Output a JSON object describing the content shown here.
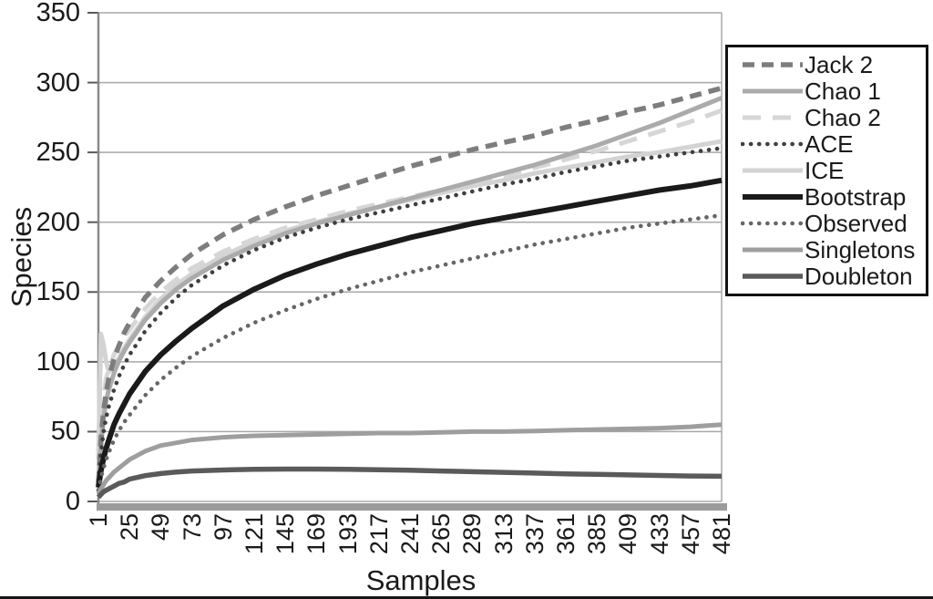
{
  "figure": {
    "background": "#ffffff",
    "text_color": "#1a1a1a"
  },
  "axes": {
    "x_title": "Samples",
    "y_title": "Species",
    "x_tick_labels": [
      "1",
      "25",
      "49",
      "73",
      "97",
      "121",
      "145",
      "169",
      "193",
      "217",
      "241",
      "265",
      "289",
      "313",
      "337",
      "361",
      "385",
      "409",
      "433",
      "457",
      "481"
    ],
    "y_tick_labels": [
      "0",
      "50",
      "100",
      "150",
      "200",
      "250",
      "300",
      "350"
    ],
    "grid_color": "#a8a8a8",
    "axis_color": "#8a8a8a",
    "tick_color": "#5a5a5a",
    "baseline_color": "#9b9b9b"
  },
  "chart_data": {
    "type": "line",
    "title": "",
    "xlabel": "Samples",
    "ylabel": "Species",
    "xlim": [
      1,
      481
    ],
    "ylim": [
      0,
      350
    ],
    "x_ticks": [
      1,
      25,
      49,
      73,
      97,
      121,
      145,
      169,
      193,
      217,
      241,
      265,
      289,
      313,
      337,
      361,
      385,
      409,
      433,
      457,
      481
    ],
    "y_ticks": [
      0,
      50,
      100,
      150,
      200,
      250,
      300,
      350
    ],
    "grid": "horizontal",
    "legend_position": "right-outside",
    "x": [
      1,
      3,
      5,
      7,
      9,
      13,
      17,
      21,
      25,
      37,
      49,
      61,
      73,
      97,
      121,
      145,
      169,
      193,
      217,
      241,
      265,
      289,
      313,
      337,
      361,
      385,
      409,
      433,
      457,
      481
    ],
    "series": [
      {
        "name": "Jack 2",
        "color": "#7d7d7d",
        "dash_style": "dash",
        "width": 5.5,
        "values": [
          12,
          45,
          65,
          78,
          88,
          102,
          112,
          121,
          128,
          146,
          158,
          168,
          177,
          191,
          202,
          211,
          219,
          226,
          233,
          240,
          246,
          252,
          257,
          262,
          268,
          273,
          279,
          284,
          290,
          296
        ]
      },
      {
        "name": "Chao 1",
        "color": "#ababab",
        "dash_style": "solid",
        "width": 5,
        "values": [
          12,
          40,
          60,
          72,
          80,
          92,
          101,
          108,
          114,
          130,
          142,
          152,
          160,
          173,
          183,
          192,
          199,
          205,
          211,
          217,
          223,
          229,
          235,
          241,
          248,
          255,
          263,
          271,
          280,
          289
        ]
      },
      {
        "name": "Chao 2",
        "color": "#d6d6d6",
        "dash_style": "long-dash",
        "width": 5,
        "values": [
          15,
          55,
          75,
          88,
          95,
          105,
          112,
          118,
          123,
          138,
          150,
          159,
          167,
          179,
          188,
          196,
          202,
          208,
          213,
          218,
          223,
          228,
          233,
          239,
          245,
          251,
          258,
          265,
          272,
          280
        ]
      },
      {
        "name": "ACE",
        "color": "#3f3f3f",
        "dash_style": "dot",
        "width": 4.6,
        "values": [
          15,
          35,
          50,
          60,
          68,
          80,
          90,
          98,
          105,
          122,
          135,
          146,
          155,
          169,
          180,
          189,
          196,
          202,
          207,
          212,
          217,
          222,
          227,
          231,
          236,
          240,
          244,
          247,
          250,
          253
        ]
      },
      {
        "name": "ICE",
        "color": "#d3d3d3",
        "dash_style": "solid",
        "width": 5,
        "values": [
          30,
          120,
          112,
          100,
          93,
          96,
          103,
          110,
          116,
          132,
          145,
          155,
          163,
          176,
          186,
          194,
          200,
          206,
          211,
          216,
          221,
          226,
          230,
          235,
          239,
          243,
          247,
          250,
          254,
          258
        ]
      },
      {
        "name": "Bootstrap",
        "color": "#1a1a1a",
        "dash_style": "solid",
        "width": 6,
        "values": [
          10,
          22,
          31,
          38,
          44,
          55,
          63,
          70,
          77,
          93,
          105,
          115,
          124,
          140,
          152,
          162,
          170,
          177,
          183,
          189,
          194,
          199,
          203,
          207,
          211,
          215,
          219,
          223,
          226,
          230
        ]
      },
      {
        "name": "Observed",
        "color": "#666666",
        "dash_style": "dot",
        "width": 4.6,
        "values": [
          8,
          17,
          24,
          30,
          35,
          44,
          51,
          57,
          62,
          76,
          87,
          96,
          104,
          117,
          128,
          137,
          145,
          152,
          158,
          164,
          169,
          174,
          179,
          184,
          188,
          192,
          196,
          199,
          202,
          205
        ]
      },
      {
        "name": "Singletons",
        "color": "#9e9e9e",
        "dash_style": "solid",
        "width": 5,
        "values": [
          5,
          9,
          12,
          15,
          17,
          21,
          24,
          27,
          30,
          36,
          40,
          42,
          44,
          46,
          47,
          47.5,
          48,
          48.5,
          49,
          49,
          49.5,
          50,
          50,
          50.5,
          51,
          51.5,
          52,
          52.5,
          53.5,
          55
        ]
      },
      {
        "name": "Doubleton",
        "color": "#5a5a5a",
        "dash_style": "solid",
        "width": 5.5,
        "values": [
          3,
          5,
          7,
          8,
          9,
          11,
          13,
          14,
          16,
          18.5,
          20,
          21,
          21.8,
          22.5,
          23,
          23.2,
          23.2,
          23,
          22.7,
          22.3,
          21.8,
          21.3,
          20.8,
          20.3,
          19.8,
          19.4,
          19,
          18.6,
          18.2,
          18
        ]
      }
    ],
    "draw_order": [
      "ICE",
      "Chao 2",
      "Chao 1",
      "Jack 2",
      "ACE",
      "Bootstrap",
      "Observed",
      "Singletons",
      "Doubleton"
    ]
  }
}
